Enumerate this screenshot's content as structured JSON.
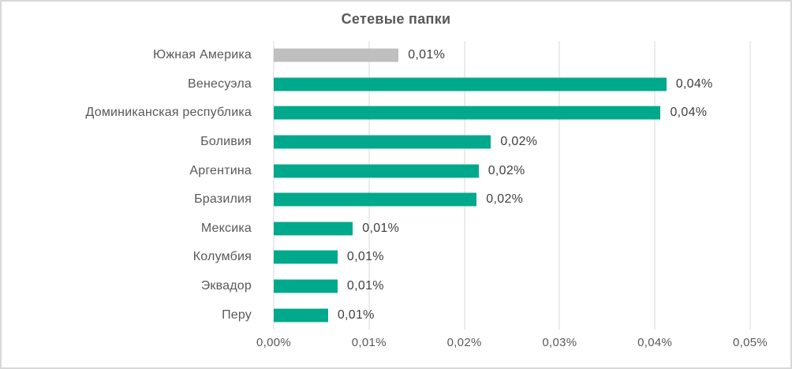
{
  "chart_data": {
    "type": "bar",
    "orientation": "horizontal",
    "title": "Сетевые папки",
    "categories": [
      "Южная Америка",
      "Венесуэла",
      "Доминиканская республика",
      "Боливия",
      "Аргентина",
      "Бразилия",
      "Мексика",
      "Колумбия",
      "Эквадор",
      "Перу"
    ],
    "values": [
      0.0131,
      0.0412,
      0.0406,
      0.0228,
      0.0215,
      0.0213,
      0.0083,
      0.0067,
      0.0067,
      0.0057
    ],
    "value_labels": [
      "0,01%",
      "0,04%",
      "0,04%",
      "0,02%",
      "0,02%",
      "0,02%",
      "0,01%",
      "0,01%",
      "0,01%",
      "0,01%"
    ],
    "bar_colors": [
      "#BFBFBF",
      "#00A88C",
      "#00A88C",
      "#00A88C",
      "#00A88C",
      "#00A88C",
      "#00A88C",
      "#00A88C",
      "#00A88C",
      "#00A88C"
    ],
    "xlim": [
      0,
      0.05
    ],
    "x_ticks": [
      "0,00%",
      "0,01%",
      "0,02%",
      "0,03%",
      "0,04%",
      "0,05%"
    ],
    "xlabel": "",
    "ylabel": "",
    "grid": true,
    "legend": false
  },
  "colors": {
    "teal": "#00A88C",
    "gray_bar": "#BFBFBF",
    "gridline": "#D9D9D9",
    "axis_text": "#595959",
    "category_text": "#595959",
    "data_label_text": "#404040",
    "title_text": "#595959",
    "frame_border": "#D8D8D8",
    "background": "#FFFFFF"
  }
}
